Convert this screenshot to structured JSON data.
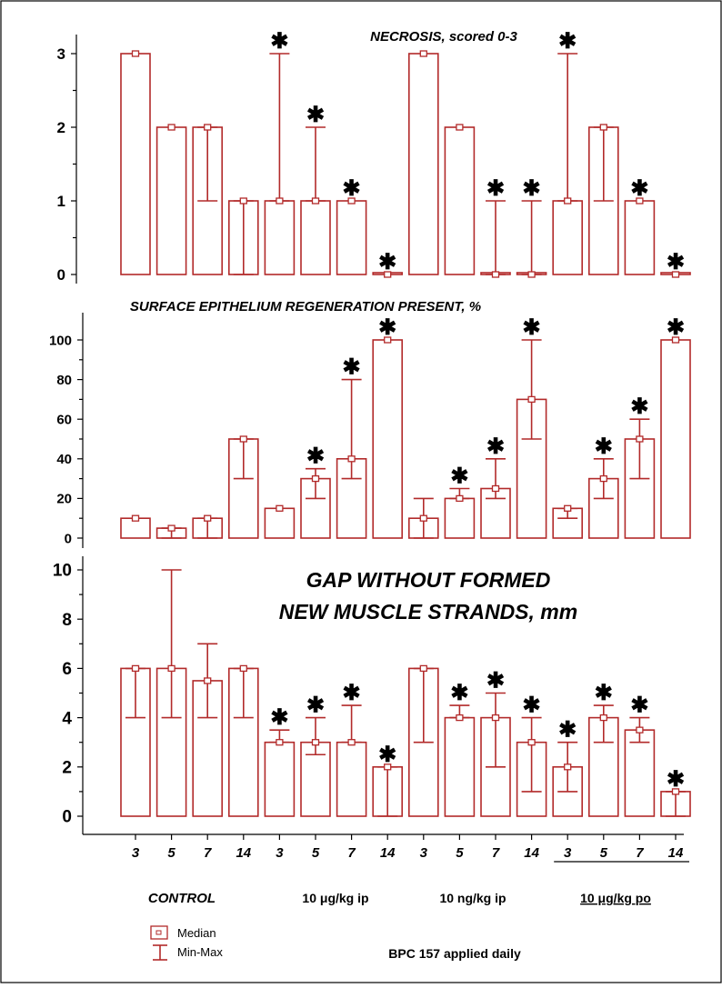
{
  "chart_data": [
    {
      "type": "bar",
      "title": "NECROSIS, scored 0-3",
      "ylim": [
        0,
        3
      ],
      "yticks": [
        "3",
        "2",
        "1",
        "0"
      ],
      "series": [
        {
          "name": "Median",
          "values": [
            3,
            2,
            2,
            1,
            1,
            1,
            1,
            0,
            3,
            2,
            0,
            0,
            1,
            2,
            1,
            0
          ]
        },
        {
          "name": "Min",
          "values": [
            3,
            2,
            1,
            0,
            1,
            1,
            1,
            0,
            3,
            2,
            0,
            0,
            1,
            1,
            1,
            0
          ]
        },
        {
          "name": "Max",
          "values": [
            3,
            2,
            2,
            1,
            3,
            2,
            1,
            0,
            3,
            2,
            1,
            1,
            3,
            2,
            1,
            0
          ]
        }
      ],
      "significant": [
        false,
        false,
        false,
        false,
        true,
        true,
        true,
        true,
        false,
        false,
        true,
        true,
        true,
        false,
        true,
        true
      ]
    },
    {
      "type": "bar",
      "title": "SURFACE EPITHELIUM REGENERATION PRESENT, %",
      "ylim": [
        0,
        100
      ],
      "yticks": [
        "100",
        "80",
        "60",
        "40",
        "20",
        "0"
      ],
      "series": [
        {
          "name": "Median",
          "values": [
            10,
            5,
            10,
            50,
            15,
            30,
            40,
            100,
            10,
            20,
            25,
            70,
            15,
            30,
            50,
            100
          ]
        },
        {
          "name": "Min",
          "values": [
            10,
            0,
            0,
            30,
            15,
            20,
            30,
            100,
            0,
            20,
            20,
            50,
            10,
            20,
            30,
            100
          ]
        },
        {
          "name": "Max",
          "values": [
            10,
            5,
            10,
            50,
            15,
            35,
            80,
            100,
            20,
            25,
            40,
            100,
            15,
            40,
            60,
            100
          ]
        }
      ],
      "significant": [
        false,
        false,
        false,
        false,
        false,
        true,
        true,
        true,
        false,
        true,
        true,
        true,
        false,
        true,
        true,
        true
      ]
    },
    {
      "type": "bar",
      "title": "GAP WITHOUT FORMED NEW MUSCLE STRANDS, mm",
      "title_lines": [
        "GAP WITHOUT FORMED",
        "NEW MUSCLE STRANDS, mm"
      ],
      "ylim": [
        0,
        10
      ],
      "yticks": [
        "10",
        "8",
        "6",
        "4",
        "2",
        "0"
      ],
      "series": [
        {
          "name": "Median",
          "values": [
            6,
            6,
            5.5,
            6,
            3,
            3,
            3,
            2,
            6,
            4,
            4,
            3,
            2,
            4,
            3.5,
            1
          ]
        },
        {
          "name": "Min",
          "values": [
            4,
            4,
            4,
            4,
            3,
            2.5,
            3,
            0,
            3,
            4,
            2,
            1,
            1,
            3,
            3,
            0
          ]
        },
        {
          "name": "Max",
          "values": [
            6,
            10,
            7,
            6,
            3.5,
            4,
            4.5,
            2,
            6,
            4.5,
            5,
            4,
            3,
            4.5,
            4,
            1
          ]
        }
      ],
      "significant": [
        false,
        false,
        false,
        false,
        true,
        true,
        true,
        true,
        false,
        true,
        true,
        true,
        true,
        true,
        true,
        true
      ]
    }
  ],
  "x_labels": [
    "3",
    "5",
    "7",
    "14",
    "3",
    "5",
    "7",
    "14",
    "3",
    "5",
    "7",
    "14",
    "3",
    "5",
    "7",
    "14"
  ],
  "groups": [
    "CONTROL",
    "10 μg/kg ip",
    "10 ng/kg ip",
    "10 μg/kg po"
  ],
  "legend": {
    "median": "Median",
    "minmax": "Min-Max"
  },
  "footer": "BPC 157  applied daily",
  "star": "✱",
  "colors": {
    "bar_stroke": "#b22a2a",
    "bar_fill": "#ffffff",
    "text": "#000000"
  }
}
